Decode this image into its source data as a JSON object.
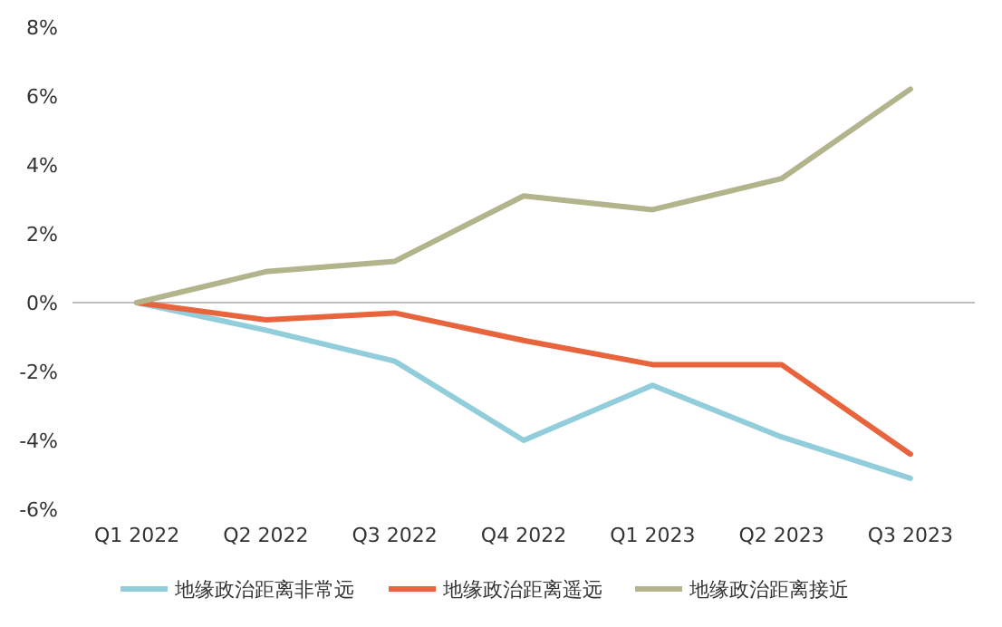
{
  "chart_data": {
    "type": "line",
    "categories": [
      "Q1 2022",
      "Q2 2022",
      "Q3 2022",
      "Q4 2022",
      "Q1 2023",
      "Q2 2023",
      "Q3 2023"
    ],
    "series": [
      {
        "name": "地缘政治距离非常远",
        "color": "#92cddc",
        "values": [
          0,
          -0.8,
          -1.7,
          -4.0,
          -2.4,
          -3.9,
          -5.1
        ]
      },
      {
        "name": "地缘政治距离遥远",
        "color": "#e8643c",
        "values": [
          0,
          -0.5,
          -0.3,
          -1.1,
          -1.8,
          -1.8,
          -4.4
        ]
      },
      {
        "name": "地缘政治距离接近",
        "color": "#b2b48c",
        "values": [
          0,
          0.9,
          1.2,
          3.1,
          2.7,
          3.6,
          6.2
        ]
      }
    ],
    "ylim": [
      -6,
      8
    ],
    "yticks": [
      {
        "value": -6,
        "label": "-6%"
      },
      {
        "value": -4,
        "label": "-4%"
      },
      {
        "value": -2,
        "label": "-2%"
      },
      {
        "value": 0,
        "label": "0%"
      },
      {
        "value": 2,
        "label": "2%"
      },
      {
        "value": 4,
        "label": "4%"
      },
      {
        "value": 6,
        "label": "6%"
      },
      {
        "value": 8,
        "label": "8%"
      }
    ],
    "legend": "bottom",
    "marker": "none",
    "line_style": "solid"
  }
}
